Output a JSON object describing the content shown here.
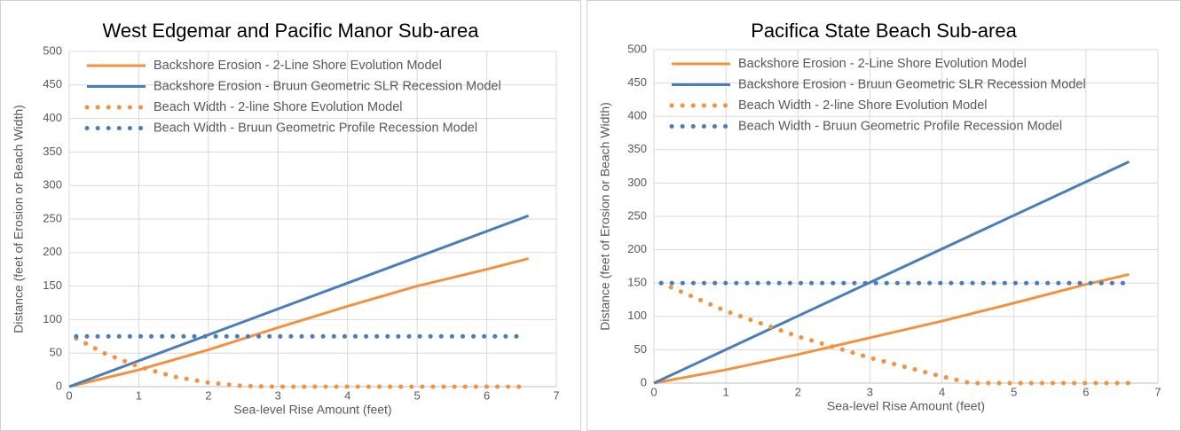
{
  "chart_data": [
    {
      "type": "line",
      "title": "West Edgemar and Pacific Manor Sub-area",
      "x_label": "Sea-level Rise Amount (feet)",
      "y_label": "Distance (feet of Erosion or Beach Width)",
      "xlim": [
        0,
        7
      ],
      "xticks": [
        0,
        1,
        2,
        3,
        4,
        5,
        6,
        7
      ],
      "ylim": [
        0,
        500
      ],
      "yticks": [
        0,
        50,
        100,
        150,
        200,
        250,
        300,
        350,
        400,
        450,
        500
      ],
      "grid": true,
      "legend": "top-left",
      "series": [
        {
          "name": "Backshore Erosion - 2-Line Shore Evolution Model",
          "color": "#f4913e",
          "style": "solid",
          "x": [
            0,
            1,
            2,
            3,
            4,
            5,
            6,
            6.6
          ],
          "values": [
            0,
            25,
            55,
            88,
            120,
            150,
            175,
            191
          ]
        },
        {
          "name": "Backshore Erosion - Bruun Geometric SLR Recession Model",
          "color": "#4a7ebb",
          "style": "solid",
          "x": [
            0,
            6.6
          ],
          "values": [
            0,
            255
          ]
        },
        {
          "name": "Beach Width - 2-line Shore Evolution Model",
          "color": "#f4913e",
          "style": "dotted",
          "x": [
            0.1,
            0.5,
            1,
            1.5,
            2,
            2.5,
            3,
            6.5
          ],
          "values": [
            72,
            50,
            30,
            15,
            6,
            1,
            0,
            0
          ]
        },
        {
          "name": "Beach Width - Bruun Geometric Profile Recession Model",
          "color": "#4a7ebb",
          "style": "dotted",
          "x": [
            0.1,
            6.5
          ],
          "values": [
            75,
            75
          ]
        }
      ]
    },
    {
      "type": "line",
      "title": "Pacifica State Beach Sub-area",
      "x_label": "Sea-level Rise Amount (feet)",
      "y_label": "Distance (feet of Erosion or Beach Width)",
      "xlim": [
        0,
        7
      ],
      "xticks": [
        0,
        1,
        2,
        3,
        4,
        5,
        6,
        7
      ],
      "ylim": [
        0,
        500
      ],
      "yticks": [
        0,
        50,
        100,
        150,
        200,
        250,
        300,
        350,
        400,
        450,
        500
      ],
      "grid": true,
      "legend": "top-left",
      "series": [
        {
          "name": "Backshore Erosion - 2-Line Shore Evolution Model",
          "color": "#f4913e",
          "style": "solid",
          "x": [
            0,
            1,
            2,
            3,
            4,
            5,
            6,
            6.6
          ],
          "values": [
            0,
            20,
            43,
            68,
            93,
            120,
            148,
            163
          ]
        },
        {
          "name": "Backshore Erosion - Bruun Geometric SLR Recession Model",
          "color": "#4a7ebb",
          "style": "solid",
          "x": [
            0,
            6.6
          ],
          "values": [
            0,
            332
          ]
        },
        {
          "name": "Beach Width - 2-line Shore Evolution Model",
          "color": "#f4913e",
          "style": "dotted",
          "x": [
            0.1,
            1,
            2,
            3,
            4,
            4.4,
            6.6
          ],
          "values": [
            150,
            108,
            70,
            38,
            10,
            0,
            0
          ]
        },
        {
          "name": "Beach Width - Bruun Geometric Profile Recession Model",
          "color": "#4a7ebb",
          "style": "dotted",
          "x": [
            0.1,
            6.6
          ],
          "values": [
            150,
            150
          ]
        }
      ]
    }
  ]
}
